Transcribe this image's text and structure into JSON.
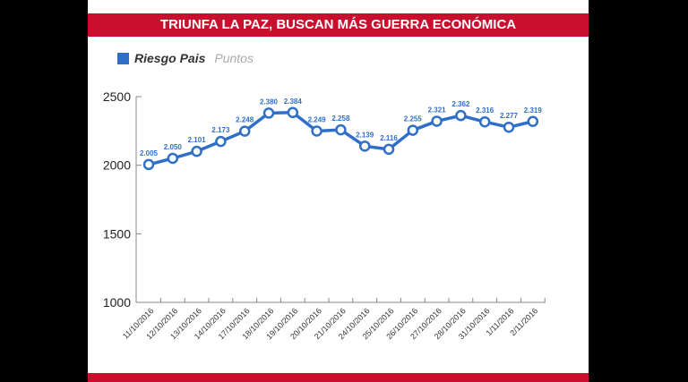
{
  "chart_data": {
    "type": "line",
    "title": "TRIUNFA LA PAZ, BUSCAN MÁS GUERRA ECONÓMICA",
    "legend": {
      "series": "Riesgo Pais",
      "unit": "Puntos",
      "placement": "top-left"
    },
    "categories": [
      "11/10/2016",
      "12/10/2016",
      "13/10/2016",
      "14/10/2016",
      "17/10/2016",
      "18/10/2016",
      "19/10/2016",
      "20/10/2016",
      "21/10/2016",
      "24/10/2016",
      "25/10/2016",
      "26/10/2016",
      "27/10/2016",
      "28/10/2016",
      "31/10/2016",
      "1/11/2016",
      "2/11/2016"
    ],
    "values": [
      2005,
      2050,
      2101,
      2173,
      2248,
      2380,
      2384,
      2249,
      2258,
      2139,
      2116,
      2255,
      2321,
      2362,
      2316,
      2277,
      2319
    ],
    "data_labels": [
      "2.005",
      "2.050",
      "2.101",
      "2.173",
      "2.248",
      "2.380",
      "2.384",
      "2.249",
      "2.258",
      "2.139",
      "2.116",
      "2.255",
      "2.321",
      "2.362",
      "2.316",
      "2.277",
      "2.319"
    ],
    "ylim": [
      1000,
      2500
    ],
    "yticks": [
      "1000",
      "1500",
      "2000",
      "2500"
    ],
    "xlabel": "",
    "ylabel": "",
    "grid": false,
    "color": "#2f6fc9"
  }
}
